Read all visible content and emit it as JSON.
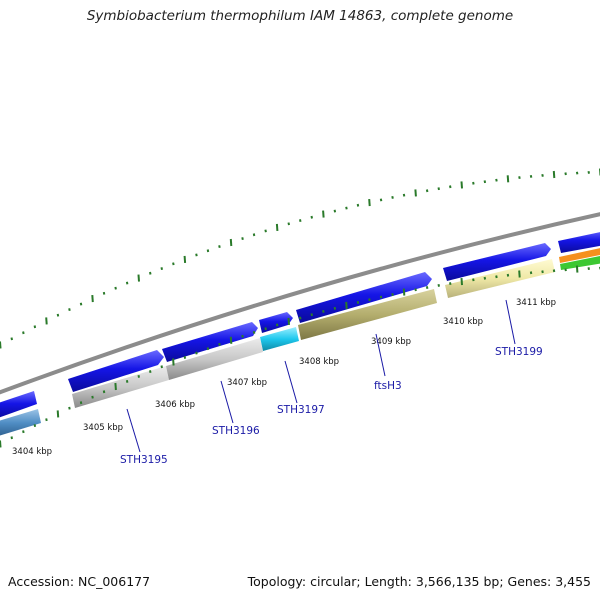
{
  "title": "Symbiobacterium thermophilum IAM 14863, complete genome",
  "footer": {
    "accession": "Accession: NC_006177",
    "stats": "Topology: circular; Length: 3,566,135 bp; Genes: 3,455"
  },
  "ticks": [
    "3404 kbp",
    "3405 kbp",
    "3406 kbp",
    "3407 kbp",
    "3408 kbp",
    "3409 kbp",
    "3410 kbp",
    "3411 kbp"
  ],
  "gene_labels": [
    "STH3195",
    "STH3196",
    "STH3197",
    "ftsH3",
    "STH3199"
  ],
  "colors": {
    "forward_strand": "#1515e6",
    "backbone": "#8c8c8c",
    "gray_gene": "#c8c8c8",
    "cyan_gene": "#1ec8ee",
    "olive_gene": "#b4ae6e",
    "pale_yellow_gene": "#efe8a6",
    "steel_blue_gene": "#4f8dc4",
    "orange_feature": "#f5901e",
    "green_feature": "#3cc832",
    "tick_green": "#2a7a2a",
    "label_blue": "#1a1aa6"
  }
}
